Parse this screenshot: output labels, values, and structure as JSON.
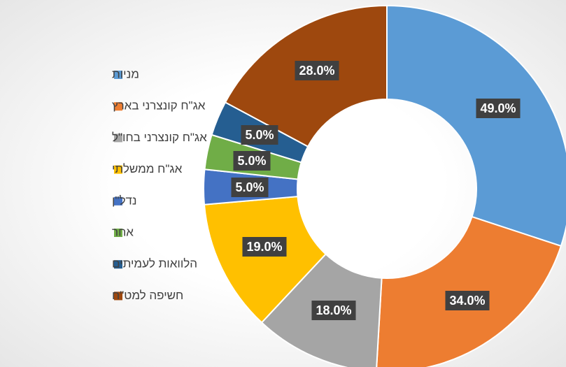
{
  "chart_data": {
    "type": "donut",
    "categories": [
      "מניות",
      "אג\"ח קונצרני בארץ",
      "אג\"ח קונצרני בחו\"ל",
      "אג\"ח ממשלתי",
      "נדל\"ן",
      "אחר",
      "הלוואות לעמיתים",
      "חשיפה למט\"ח"
    ],
    "values": [
      49,
      34,
      18,
      19,
      5,
      5,
      5,
      28
    ],
    "value_labels": [
      "49.0%",
      "34.0%",
      "18.0%",
      "19.0%",
      "5.0%",
      "5.0%",
      "5.0%",
      "28.0%"
    ],
    "colors": [
      "#5b9bd5",
      "#ed7d31",
      "#a5a5a5",
      "#ffc000",
      "#4472c4",
      "#70ad47",
      "#255e91",
      "#9e480e"
    ],
    "legend": "left"
  }
}
